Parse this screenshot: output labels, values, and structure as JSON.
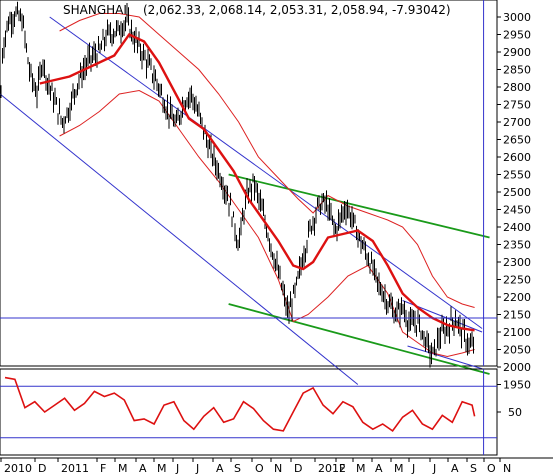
{
  "chart_data": {
    "type": "line",
    "title": "SHANGHAI",
    "ohlc_label": "(2,062.33, 2,068.14, 2,053.31, 2,058.94, -7.93042)",
    "x_tick_labels": [
      "2010",
      "D",
      "2011",
      "F",
      "M",
      "A",
      "M",
      "J",
      "J",
      "A",
      "S",
      "O",
      "N",
      "D",
      "2012",
      "F",
      "M",
      "A",
      "M",
      "J",
      "J",
      "A",
      "S",
      "O",
      "N"
    ],
    "y_tick_labels": [
      "3000",
      "2950",
      "2900",
      "2850",
      "2800",
      "2750",
      "2700",
      "2650",
      "2600",
      "2550",
      "2500",
      "2450",
      "2400",
      "2350",
      "2300",
      "2250",
      "2200",
      "2150",
      "2100",
      "2050",
      "2000",
      "1950"
    ],
    "y_range": [
      1940,
      3020
    ],
    "indicator_tick_labels": [
      "50"
    ],
    "indicator_range": [
      0,
      100
    ],
    "horizontal_reference_level": 2140,
    "indicator_reference_levels": [
      80,
      20
    ],
    "price_path": [
      [
        0.0,
        2700
      ],
      [
        0.005,
        2900
      ],
      [
        0.015,
        2980
      ],
      [
        0.03,
        3010
      ],
      [
        0.045,
        2990
      ],
      [
        0.06,
        2840
      ],
      [
        0.075,
        2780
      ],
      [
        0.085,
        2880
      ],
      [
        0.095,
        2820
      ],
      [
        0.11,
        2760
      ],
      [
        0.125,
        2700
      ],
      [
        0.14,
        2740
      ],
      [
        0.15,
        2790
      ],
      [
        0.165,
        2840
      ],
      [
        0.18,
        2880
      ],
      [
        0.2,
        2900
      ],
      [
        0.215,
        2950
      ],
      [
        0.235,
        2960
      ],
      [
        0.255,
        2990
      ],
      [
        0.27,
        2940
      ],
      [
        0.285,
        2900
      ],
      [
        0.3,
        2860
      ],
      [
        0.32,
        2800
      ],
      [
        0.335,
        2740
      ],
      [
        0.355,
        2690
      ],
      [
        0.37,
        2760
      ],
      [
        0.385,
        2780
      ],
      [
        0.405,
        2700
      ],
      [
        0.42,
        2630
      ],
      [
        0.44,
        2560
      ],
      [
        0.46,
        2480
      ],
      [
        0.48,
        2350
      ],
      [
        0.495,
        2480
      ],
      [
        0.51,
        2530
      ],
      [
        0.525,
        2460
      ],
      [
        0.545,
        2350
      ],
      [
        0.565,
        2240
      ],
      [
        0.58,
        2150
      ],
      [
        0.595,
        2220
      ],
      [
        0.61,
        2320
      ],
      [
        0.625,
        2400
      ],
      [
        0.64,
        2460
      ],
      [
        0.655,
        2470
      ],
      [
        0.675,
        2390
      ],
      [
        0.695,
        2460
      ],
      [
        0.71,
        2420
      ],
      [
        0.725,
        2360
      ],
      [
        0.745,
        2300
      ],
      [
        0.76,
        2240
      ],
      [
        0.775,
        2200
      ],
      [
        0.795,
        2150
      ],
      [
        0.81,
        2170
      ],
      [
        0.825,
        2120
      ],
      [
        0.84,
        2130
      ],
      [
        0.855,
        2080
      ],
      [
        0.87,
        2030
      ],
      [
        0.885,
        2090
      ],
      [
        0.9,
        2110
      ],
      [
        0.915,
        2140
      ],
      [
        0.93,
        2100
      ],
      [
        0.945,
        2060
      ],
      [
        0.955,
        2059
      ]
    ],
    "moving_average_path": [
      [
        0.08,
        2810
      ],
      [
        0.11,
        2820
      ],
      [
        0.14,
        2830
      ],
      [
        0.17,
        2850
      ],
      [
        0.2,
        2870
      ],
      [
        0.23,
        2890
      ],
      [
        0.26,
        2950
      ],
      [
        0.29,
        2930
      ],
      [
        0.32,
        2870
      ],
      [
        0.35,
        2790
      ],
      [
        0.38,
        2710
      ],
      [
        0.41,
        2680
      ],
      [
        0.44,
        2620
      ],
      [
        0.47,
        2560
      ],
      [
        0.5,
        2480
      ],
      [
        0.53,
        2420
      ],
      [
        0.56,
        2360
      ],
      [
        0.59,
        2290
      ],
      [
        0.61,
        2280
      ],
      [
        0.63,
        2300
      ],
      [
        0.66,
        2370
      ],
      [
        0.69,
        2380
      ],
      [
        0.72,
        2390
      ],
      [
        0.75,
        2360
      ],
      [
        0.78,
        2290
      ],
      [
        0.81,
        2210
      ],
      [
        0.84,
        2170
      ],
      [
        0.87,
        2140
      ],
      [
        0.9,
        2120
      ],
      [
        0.93,
        2110
      ],
      [
        0.955,
        2105
      ]
    ],
    "upper_band_path": [
      [
        0.12,
        2960
      ],
      [
        0.16,
        2990
      ],
      [
        0.2,
        3010
      ],
      [
        0.24,
        3010
      ],
      [
        0.28,
        3000
      ],
      [
        0.32,
        2950
      ],
      [
        0.36,
        2900
      ],
      [
        0.4,
        2850
      ],
      [
        0.44,
        2780
      ],
      [
        0.48,
        2700
      ],
      [
        0.52,
        2600
      ],
      [
        0.56,
        2540
      ],
      [
        0.6,
        2480
      ],
      [
        0.63,
        2440
      ],
      [
        0.66,
        2490
      ],
      [
        0.7,
        2460
      ],
      [
        0.74,
        2440
      ],
      [
        0.78,
        2420
      ],
      [
        0.81,
        2400
      ],
      [
        0.84,
        2350
      ],
      [
        0.87,
        2260
      ],
      [
        0.9,
        2200
      ],
      [
        0.93,
        2180
      ],
      [
        0.955,
        2170
      ]
    ],
    "lower_band_path": [
      [
        0.12,
        2660
      ],
      [
        0.16,
        2690
      ],
      [
        0.2,
        2730
      ],
      [
        0.24,
        2780
      ],
      [
        0.28,
        2790
      ],
      [
        0.32,
        2760
      ],
      [
        0.36,
        2680
      ],
      [
        0.4,
        2600
      ],
      [
        0.44,
        2530
      ],
      [
        0.48,
        2450
      ],
      [
        0.52,
        2370
      ],
      [
        0.56,
        2250
      ],
      [
        0.59,
        2130
      ],
      [
        0.62,
        2150
      ],
      [
        0.66,
        2200
      ],
      [
        0.7,
        2260
      ],
      [
        0.74,
        2290
      ],
      [
        0.78,
        2210
      ],
      [
        0.81,
        2100
      ],
      [
        0.84,
        2070
      ],
      [
        0.87,
        2040
      ],
      [
        0.9,
        2030
      ],
      [
        0.93,
        2040
      ],
      [
        0.955,
        2050
      ]
    ],
    "trend_lines": [
      {
        "color": "#3333cc",
        "from": [
          0.1,
          3000
        ],
        "to": [
          0.97,
          2110
        ]
      },
      {
        "color": "#3333cc",
        "from": [
          0.0,
          2780
        ],
        "to": [
          0.72,
          1950
        ]
      },
      {
        "color": "#3333cc",
        "from": [
          0.81,
          2190
        ],
        "to": [
          0.97,
          2100
        ]
      },
      {
        "color": "#3333cc",
        "from": [
          0.82,
          2060
        ],
        "to": [
          0.97,
          1995
        ]
      },
      {
        "color": "#1a9a1a",
        "from": [
          0.46,
          2550
        ],
        "to": [
          0.985,
          2370
        ]
      },
      {
        "color": "#1a9a1a",
        "from": [
          0.46,
          2180
        ],
        "to": [
          0.985,
          1980
        ]
      }
    ],
    "indicator_path": [
      [
        0.01,
        90
      ],
      [
        0.03,
        88
      ],
      [
        0.05,
        55
      ],
      [
        0.07,
        62
      ],
      [
        0.09,
        50
      ],
      [
        0.11,
        58
      ],
      [
        0.13,
        66
      ],
      [
        0.15,
        52
      ],
      [
        0.17,
        60
      ],
      [
        0.19,
        74
      ],
      [
        0.21,
        68
      ],
      [
        0.23,
        72
      ],
      [
        0.25,
        64
      ],
      [
        0.27,
        40
      ],
      [
        0.29,
        42
      ],
      [
        0.31,
        36
      ],
      [
        0.33,
        58
      ],
      [
        0.35,
        62
      ],
      [
        0.37,
        40
      ],
      [
        0.39,
        30
      ],
      [
        0.41,
        45
      ],
      [
        0.43,
        55
      ],
      [
        0.45,
        38
      ],
      [
        0.47,
        42
      ],
      [
        0.49,
        62
      ],
      [
        0.51,
        54
      ],
      [
        0.53,
        40
      ],
      [
        0.55,
        30
      ],
      [
        0.57,
        28
      ],
      [
        0.59,
        50
      ],
      [
        0.61,
        72
      ],
      [
        0.63,
        78
      ],
      [
        0.65,
        58
      ],
      [
        0.67,
        48
      ],
      [
        0.69,
        62
      ],
      [
        0.71,
        56
      ],
      [
        0.73,
        38
      ],
      [
        0.75,
        30
      ],
      [
        0.77,
        36
      ],
      [
        0.79,
        28
      ],
      [
        0.81,
        44
      ],
      [
        0.83,
        52
      ],
      [
        0.85,
        36
      ],
      [
        0.87,
        30
      ],
      [
        0.89,
        46
      ],
      [
        0.91,
        38
      ],
      [
        0.93,
        62
      ],
      [
        0.95,
        58
      ],
      [
        0.955,
        45
      ]
    ],
    "colors": {
      "price": "#000000",
      "moving_average": "#dd1111",
      "bands": "#dd2222",
      "indicator": "#dd1111",
      "reference_line": "#3333cc",
      "channel_blue": "#3333cc",
      "channel_green": "#1a9a1a",
      "axis": "#000000"
    }
  }
}
